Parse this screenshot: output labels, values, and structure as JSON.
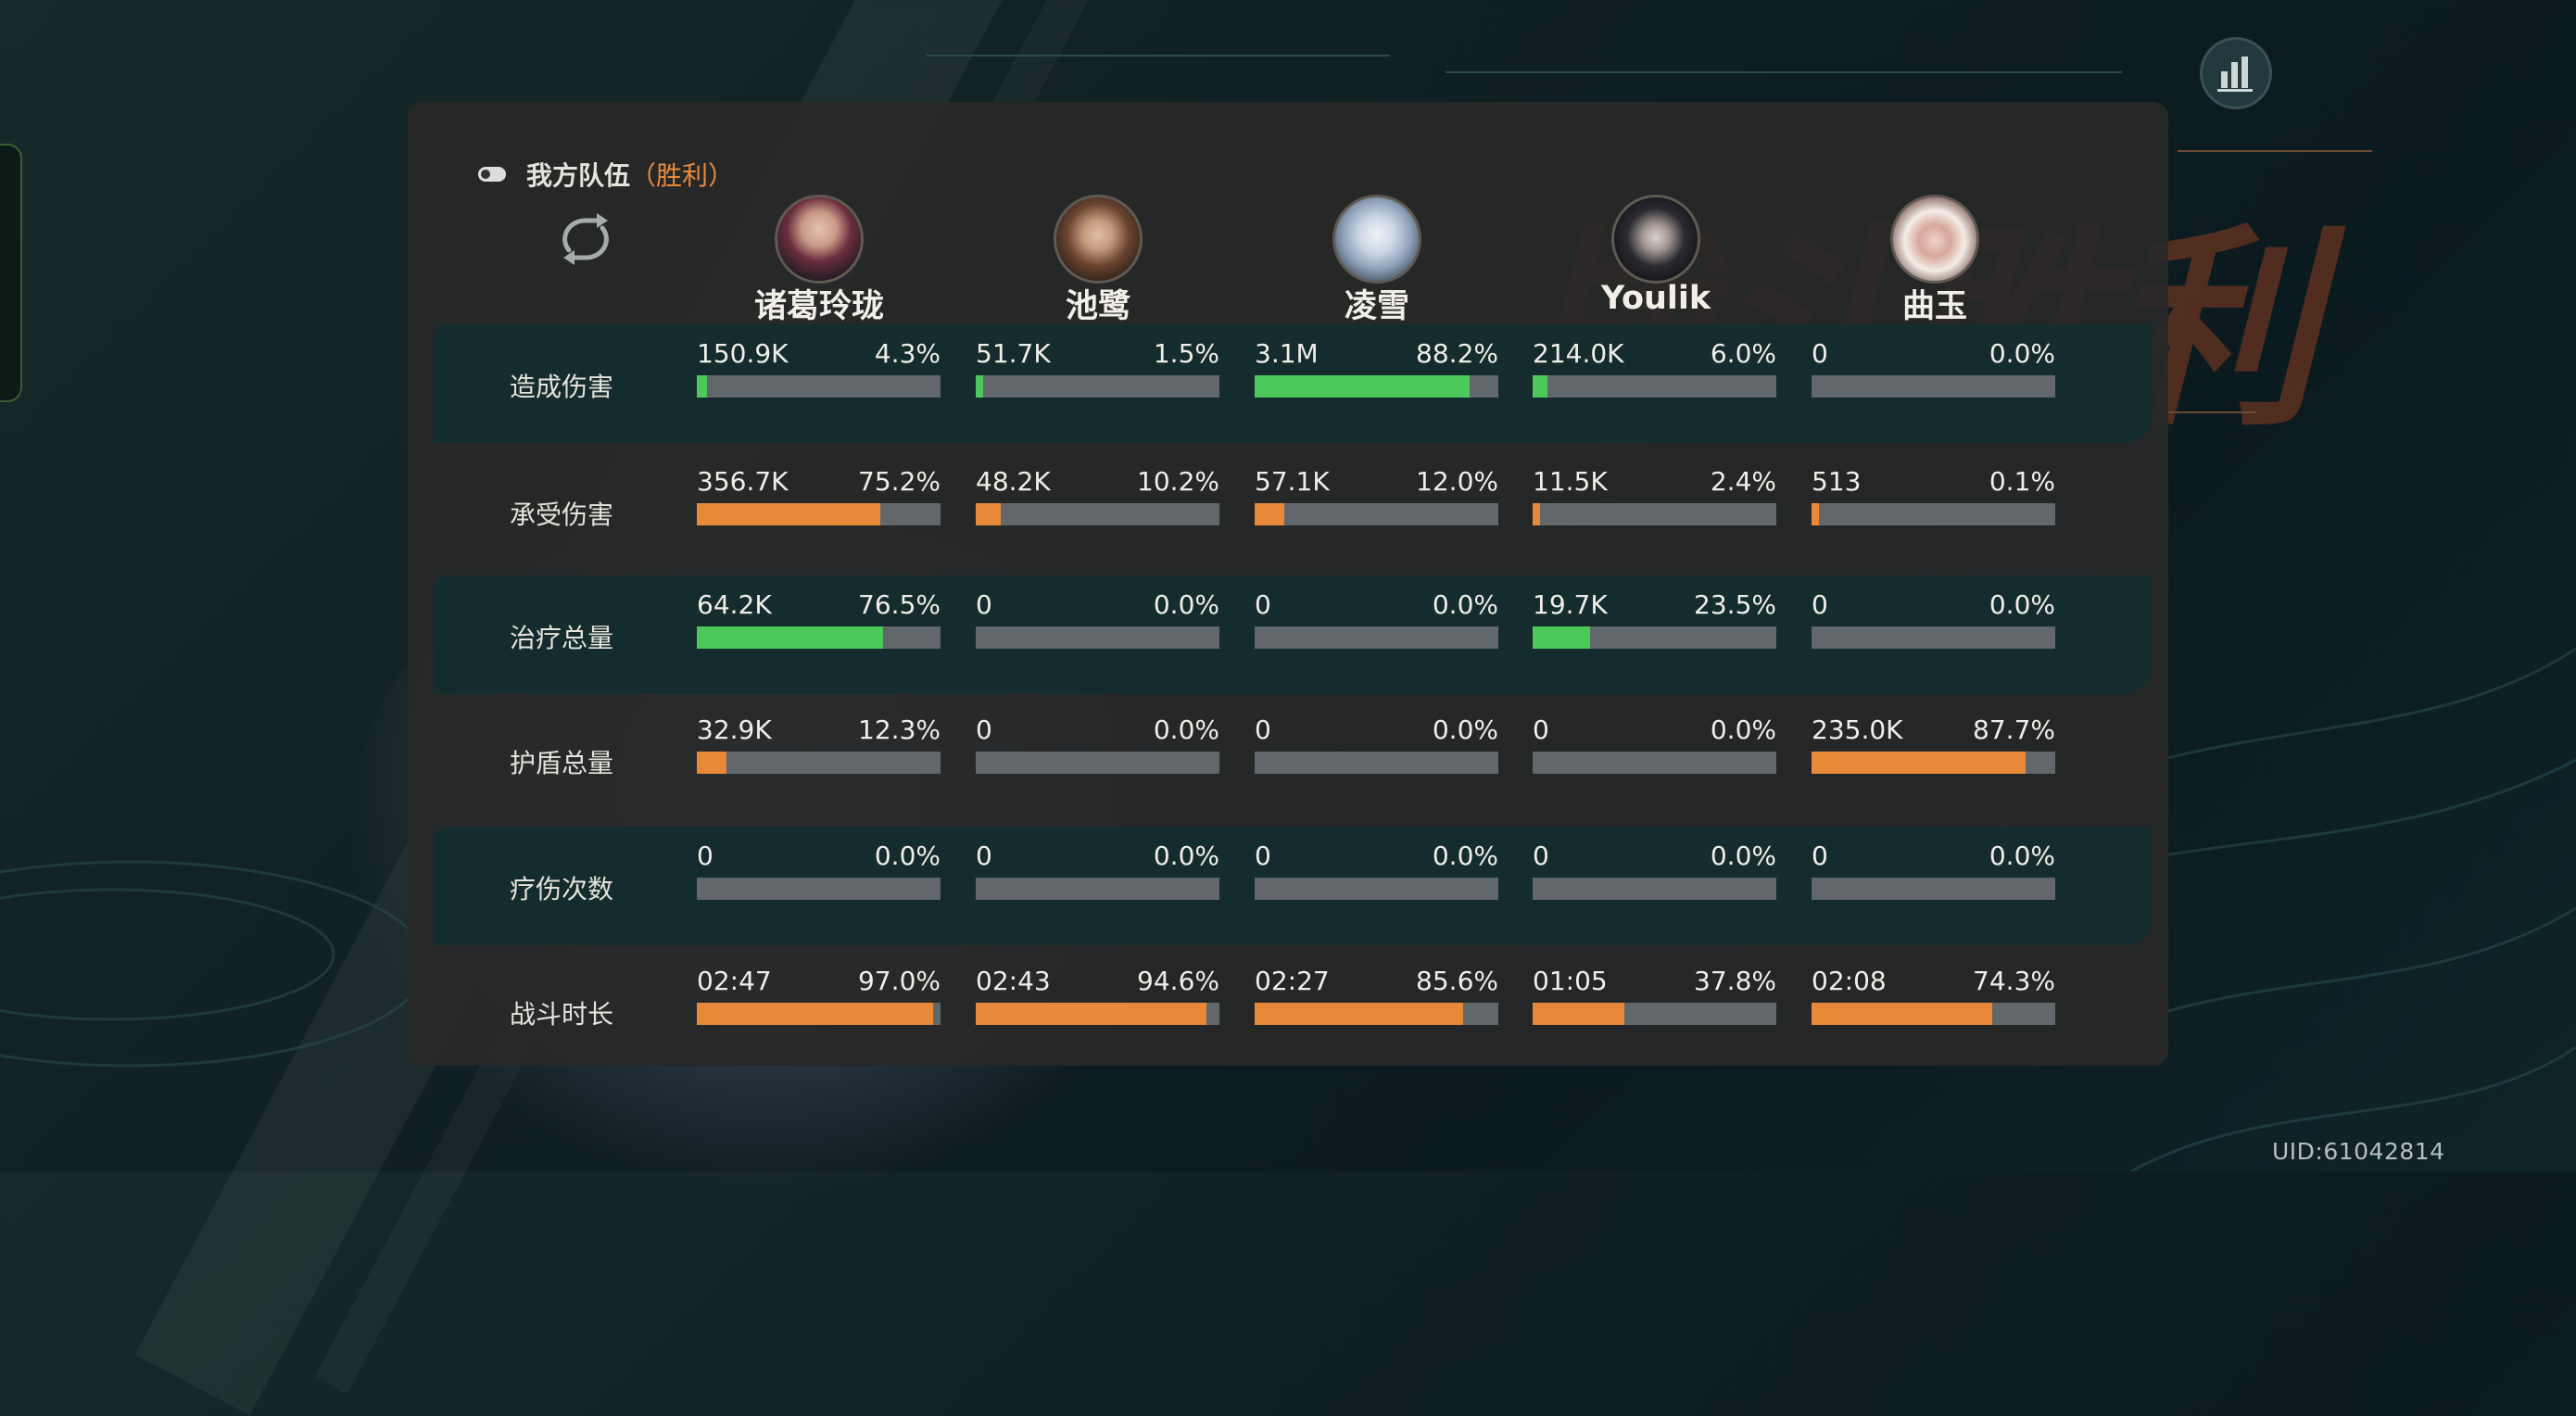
{
  "team": {
    "title": "我方队伍",
    "result": "（胜利）"
  },
  "background_title": "战斗胜利",
  "uid": "UID:61042814",
  "colors": {
    "damage_bar": "#4cc95a",
    "taken_bar": "#e8893a",
    "victory": "#e88a3c"
  },
  "icons": {
    "refresh": "refresh-icon",
    "stats": "bar-chart-icon",
    "toggle": "toggle-icon"
  },
  "heroes": [
    {
      "name": "诸葛玲珑"
    },
    {
      "name": "池鹭"
    },
    {
      "name": "凌雪"
    },
    {
      "name": "Youlik"
    },
    {
      "name": "曲玉"
    }
  ],
  "rows": [
    {
      "label": "造成伤害",
      "color": "green",
      "cells": [
        {
          "value": "150.9K",
          "pct": "4.3%"
        },
        {
          "value": "51.7K",
          "pct": "1.5%"
        },
        {
          "value": "3.1M",
          "pct": "88.2%"
        },
        {
          "value": "214.0K",
          "pct": "6.0%"
        },
        {
          "value": "0",
          "pct": "0.0%"
        }
      ]
    },
    {
      "label": "承受伤害",
      "color": "orange",
      "cells": [
        {
          "value": "356.7K",
          "pct": "75.2%"
        },
        {
          "value": "48.2K",
          "pct": "10.2%"
        },
        {
          "value": "57.1K",
          "pct": "12.0%"
        },
        {
          "value": "11.5K",
          "pct": "2.4%"
        },
        {
          "value": "513",
          "pct": "0.1%"
        }
      ]
    },
    {
      "label": "治疗总量",
      "color": "green",
      "cells": [
        {
          "value": "64.2K",
          "pct": "76.5%"
        },
        {
          "value": "0",
          "pct": "0.0%"
        },
        {
          "value": "0",
          "pct": "0.0%"
        },
        {
          "value": "19.7K",
          "pct": "23.5%"
        },
        {
          "value": "0",
          "pct": "0.0%"
        }
      ]
    },
    {
      "label": "护盾总量",
      "color": "orange",
      "cells": [
        {
          "value": "32.9K",
          "pct": "12.3%"
        },
        {
          "value": "0",
          "pct": "0.0%"
        },
        {
          "value": "0",
          "pct": "0.0%"
        },
        {
          "value": "0",
          "pct": "0.0%"
        },
        {
          "value": "235.0K",
          "pct": "87.7%"
        }
      ]
    },
    {
      "label": "疗伤次数",
      "color": "green",
      "cells": [
        {
          "value": "0",
          "pct": "0.0%"
        },
        {
          "value": "0",
          "pct": "0.0%"
        },
        {
          "value": "0",
          "pct": "0.0%"
        },
        {
          "value": "0",
          "pct": "0.0%"
        },
        {
          "value": "0",
          "pct": "0.0%"
        }
      ]
    },
    {
      "label": "战斗时长",
      "color": "orange",
      "cells": [
        {
          "value": "02:47",
          "pct": "97.0%"
        },
        {
          "value": "02:43",
          "pct": "94.6%"
        },
        {
          "value": "02:27",
          "pct": "85.6%"
        },
        {
          "value": "01:05",
          "pct": "37.8%"
        },
        {
          "value": "02:08",
          "pct": "74.3%"
        }
      ]
    }
  ]
}
